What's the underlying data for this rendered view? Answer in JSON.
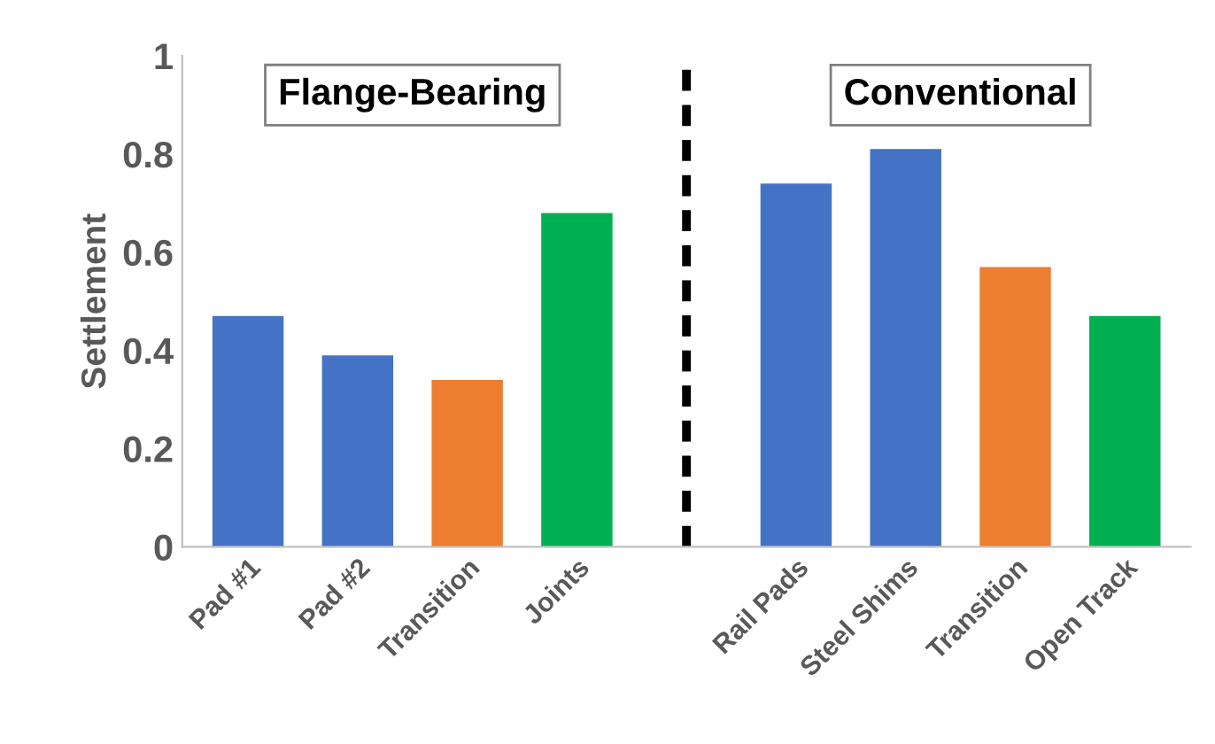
{
  "chart_data": {
    "type": "bar",
    "ylabel": "Settlement",
    "categories": [
      "Pad #1",
      "Pad #2",
      "Transition",
      "Joints",
      null,
      "Rail Pads",
      "Steel Shims",
      "Transition",
      "Open Track"
    ],
    "values": [
      0.47,
      0.39,
      0.34,
      0.68,
      null,
      0.74,
      0.81,
      0.57,
      0.47
    ],
    "colors": [
      "#4472c4",
      "#4472c4",
      "#ed7d31",
      "#00b050",
      "#ffffff",
      "#4472c4",
      "#4472c4",
      "#ed7d31",
      "#00b050"
    ],
    "ylim": [
      0,
      1
    ],
    "yticks": [
      0,
      0.2,
      0.4,
      0.6,
      0.8,
      1
    ],
    "annotations": [
      "Flange-Bearing",
      "Conventional"
    ],
    "grid": false,
    "legend": false
  }
}
